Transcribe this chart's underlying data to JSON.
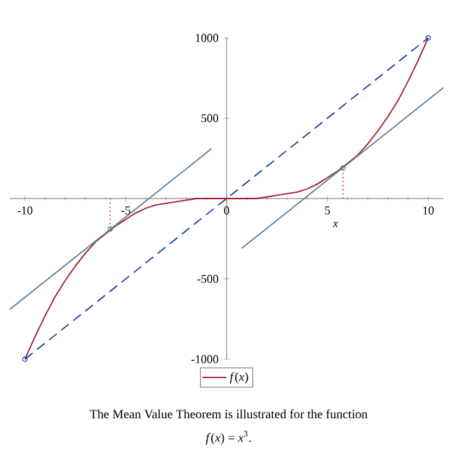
{
  "chart_data": {
    "type": "line",
    "xlabel": "*x*",
    "xlim": [
      -10.75,
      10.75
    ],
    "ylim": [
      -1000,
      1000
    ],
    "xticks": [
      -10,
      -5,
      0,
      5,
      10
    ],
    "yticks": [
      -1000,
      -500,
      500,
      1000
    ],
    "legend": "bottom",
    "series": [
      {
        "name": "*f*(*x*)",
        "color": "#a01c2c",
        "line_style": "solid",
        "marker": "none",
        "x": [
          -10,
          -9.5,
          -9,
          -8.5,
          -8,
          -7.5,
          -7,
          -6.5,
          -6,
          -5.5,
          -5,
          -4.5,
          -4,
          -3.5,
          -3,
          -2.5,
          -2,
          -1.5,
          -1,
          -0.5,
          0,
          0.5,
          1,
          1.5,
          2,
          2.5,
          3,
          3.5,
          4,
          4.5,
          5,
          5.5,
          6,
          6.5,
          7,
          7.5,
          8,
          8.5,
          9,
          9.5,
          10
        ],
        "values": [
          -1000,
          -860,
          -730,
          -610,
          -510,
          -420,
          -340,
          -270,
          -220,
          -170,
          -130,
          -90,
          -60,
          -40,
          -30,
          -20,
          -10,
          0,
          0,
          0,
          0,
          0,
          0,
          0,
          10,
          20,
          30,
          40,
          60,
          90,
          130,
          170,
          220,
          270,
          340,
          420,
          510,
          610,
          730,
          860,
          1000
        ]
      },
      {
        "color": "#1f3fa0",
        "line_style": "dashed",
        "marker": "circle",
        "x": [
          -10,
          10
        ],
        "values": [
          -1000,
          1000
        ]
      },
      {
        "color": "#5f7f9f",
        "line_style": "solid",
        "marker": "none",
        "x": [
          -10.75,
          -0.75
        ],
        "values": [
          -690,
          310
        ]
      },
      {
        "color": "#5f7f9f",
        "line_style": "solid",
        "marker": "none",
        "x": [
          0.75,
          10.75
        ],
        "values": [
          -310,
          690
        ]
      },
      {
        "color": "#c0389a",
        "line_style": "dotted",
        "marker": "none",
        "x": [
          -5.77,
          -5.77
        ],
        "values": [
          0,
          -190
        ]
      },
      {
        "color": "#c0389a",
        "line_style": "dotted",
        "marker": "none",
        "x": [
          5.77,
          5.77
        ],
        "values": [
          0,
          190
        ]
      },
      {
        "type": "scatter",
        "color": "#4a9a4a",
        "marker": "circle",
        "x": [
          -5.77,
          5.77
        ],
        "values": [
          -190,
          190
        ]
      }
    ],
    "annotations": [
      "The Mean Value Theorem is illustrated for the function",
      "*f*(*x*) = *x*$^{3}$."
    ]
  }
}
